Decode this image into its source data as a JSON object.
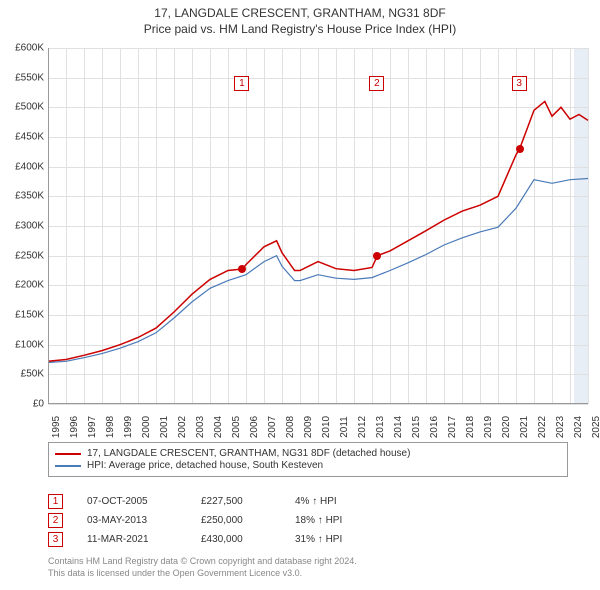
{
  "title": {
    "line1": "17, LANGDALE CRESCENT, GRANTHAM, NG31 8DF",
    "line2": "Price paid vs. HM Land Registry's House Price Index (HPI)"
  },
  "chart": {
    "type": "line",
    "background_color": "#ffffff",
    "grid_color": "#e0e0e0",
    "axis_color": "#999999",
    "ylim": [
      0,
      600000
    ],
    "ytick_step": 50000,
    "y_labels": [
      "£0",
      "£50K",
      "£100K",
      "£150K",
      "£200K",
      "£250K",
      "£300K",
      "£350K",
      "£400K",
      "£450K",
      "£500K",
      "£550K",
      "£600K"
    ],
    "xlim": [
      1995,
      2025
    ],
    "x_labels": [
      "1995",
      "1996",
      "1997",
      "1998",
      "1999",
      "2000",
      "2001",
      "2002",
      "2003",
      "2004",
      "2005",
      "2006",
      "2007",
      "2008",
      "2009",
      "2010",
      "2011",
      "2012",
      "2013",
      "2014",
      "2015",
      "2016",
      "2017",
      "2018",
      "2019",
      "2020",
      "2021",
      "2022",
      "2023",
      "2024",
      "2025"
    ],
    "series": [
      {
        "name": "property",
        "label": "17, LANGDALE CRESCENT, GRANTHAM, NG31 8DF (detached house)",
        "color": "#cc0000",
        "line_width": 1.5,
        "points": [
          [
            1995,
            72000
          ],
          [
            1996,
            75000
          ],
          [
            1997,
            82000
          ],
          [
            1998,
            90000
          ],
          [
            1999,
            100000
          ],
          [
            2000,
            112000
          ],
          [
            2001,
            128000
          ],
          [
            2002,
            155000
          ],
          [
            2003,
            185000
          ],
          [
            2004,
            210000
          ],
          [
            2005,
            225000
          ],
          [
            2005.8,
            227500
          ],
          [
            2006,
            235000
          ],
          [
            2007,
            265000
          ],
          [
            2007.7,
            275000
          ],
          [
            2008,
            255000
          ],
          [
            2008.7,
            225000
          ],
          [
            2009,
            225000
          ],
          [
            2010,
            240000
          ],
          [
            2011,
            228000
          ],
          [
            2012,
            225000
          ],
          [
            2013,
            230000
          ],
          [
            2013.3,
            250000
          ],
          [
            2014,
            258000
          ],
          [
            2015,
            275000
          ],
          [
            2016,
            292000
          ],
          [
            2017,
            310000
          ],
          [
            2018,
            325000
          ],
          [
            2019,
            335000
          ],
          [
            2020,
            350000
          ],
          [
            2021,
            420000
          ],
          [
            2021.2,
            430000
          ],
          [
            2022,
            495000
          ],
          [
            2022.6,
            510000
          ],
          [
            2023,
            485000
          ],
          [
            2023.5,
            500000
          ],
          [
            2024,
            480000
          ],
          [
            2024.5,
            488000
          ],
          [
            2025,
            478000
          ]
        ]
      },
      {
        "name": "hpi",
        "label": "HPI: Average price, detached house, South Kesteven",
        "color": "#4a7ab8",
        "line_width": 1.2,
        "points": [
          [
            1995,
            70000
          ],
          [
            1996,
            72000
          ],
          [
            1997,
            78000
          ],
          [
            1998,
            85000
          ],
          [
            1999,
            94000
          ],
          [
            2000,
            105000
          ],
          [
            2001,
            120000
          ],
          [
            2002,
            145000
          ],
          [
            2003,
            172000
          ],
          [
            2004,
            195000
          ],
          [
            2005,
            208000
          ],
          [
            2006,
            218000
          ],
          [
            2007,
            240000
          ],
          [
            2007.7,
            250000
          ],
          [
            2008,
            232000
          ],
          [
            2008.7,
            208000
          ],
          [
            2009,
            208000
          ],
          [
            2010,
            218000
          ],
          [
            2011,
            212000
          ],
          [
            2012,
            210000
          ],
          [
            2013,
            213000
          ],
          [
            2014,
            225000
          ],
          [
            2015,
            238000
          ],
          [
            2016,
            252000
          ],
          [
            2017,
            268000
          ],
          [
            2018,
            280000
          ],
          [
            2019,
            290000
          ],
          [
            2020,
            298000
          ],
          [
            2021,
            330000
          ],
          [
            2022,
            378000
          ],
          [
            2023,
            372000
          ],
          [
            2024,
            378000
          ],
          [
            2025,
            380000
          ]
        ]
      }
    ],
    "markers": [
      {
        "id": "1",
        "x": 2005.8,
        "y": 227500,
        "label_y": 540000
      },
      {
        "id": "2",
        "x": 2013.3,
        "y": 250000,
        "label_y": 540000
      },
      {
        "id": "3",
        "x": 2021.2,
        "y": 430000,
        "label_y": 540000
      }
    ],
    "end_overlay": {
      "from": 2024.2,
      "to": 2025,
      "color": "#e8eef5"
    }
  },
  "legend": {
    "items": [
      {
        "color": "#cc0000",
        "label": "17, LANGDALE CRESCENT, GRANTHAM, NG31 8DF (detached house)"
      },
      {
        "color": "#4a7ab8",
        "label": "HPI: Average price, detached house, South Kesteven"
      }
    ]
  },
  "sales": [
    {
      "id": "1",
      "date": "07-OCT-2005",
      "price": "£227,500",
      "delta": "4% ↑ HPI"
    },
    {
      "id": "2",
      "date": "03-MAY-2013",
      "price": "£250,000",
      "delta": "18% ↑ HPI"
    },
    {
      "id": "3",
      "date": "11-MAR-2021",
      "price": "£430,000",
      "delta": "31% ↑ HPI"
    }
  ],
  "footer": {
    "line1": "Contains HM Land Registry data © Crown copyright and database right 2024.",
    "line2": "This data is licensed under the Open Government Licence v3.0."
  }
}
